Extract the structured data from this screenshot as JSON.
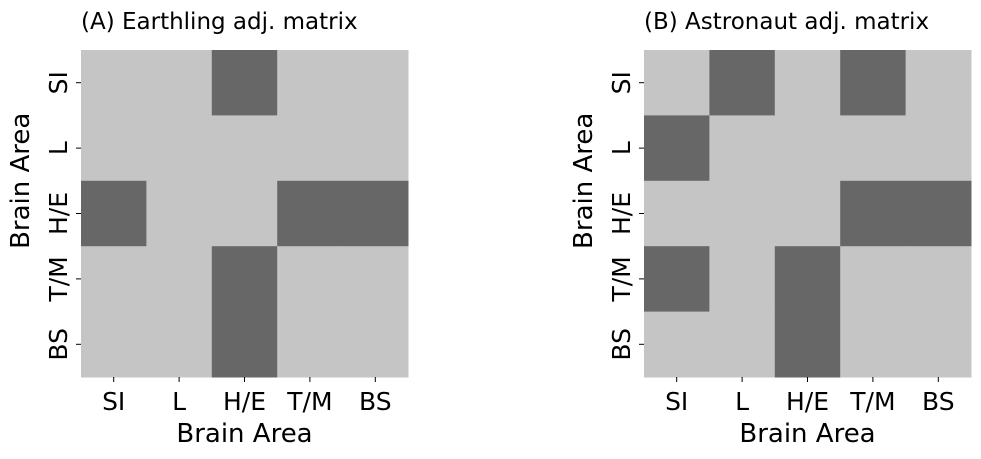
{
  "chart_data": [
    {
      "type": "heatmap",
      "title": "(A) Earthling adj. matrix",
      "xlabel": "Brain Area",
      "ylabel": "Brain Area",
      "x_categories": [
        "SI",
        "L",
        "H/E",
        "T/M",
        "BS"
      ],
      "y_categories": [
        "SI",
        "L",
        "H/E",
        "T/M",
        "BS"
      ],
      "values": [
        [
          0,
          0,
          1,
          0,
          0
        ],
        [
          0,
          0,
          0,
          0,
          0
        ],
        [
          1,
          0,
          0,
          1,
          1
        ],
        [
          0,
          0,
          1,
          0,
          0
        ],
        [
          0,
          0,
          1,
          0,
          0
        ]
      ],
      "legend": "none",
      "grid": false
    },
    {
      "type": "heatmap",
      "title": "(B) Astronaut adj. matrix",
      "xlabel": "Brain Area",
      "ylabel": "Brain Area",
      "x_categories": [
        "SI",
        "L",
        "H/E",
        "T/M",
        "BS"
      ],
      "y_categories": [
        "SI",
        "L",
        "H/E",
        "T/M",
        "BS"
      ],
      "values": [
        [
          0,
          1,
          0,
          1,
          0
        ],
        [
          1,
          0,
          0,
          0,
          0
        ],
        [
          0,
          0,
          0,
          1,
          1
        ],
        [
          1,
          0,
          1,
          0,
          0
        ],
        [
          0,
          0,
          1,
          0,
          0
        ]
      ],
      "legend": "none",
      "grid": false
    }
  ],
  "colors": {
    "connected": "#676767",
    "not_connected": "#c5c5c5",
    "text": "#000000"
  }
}
